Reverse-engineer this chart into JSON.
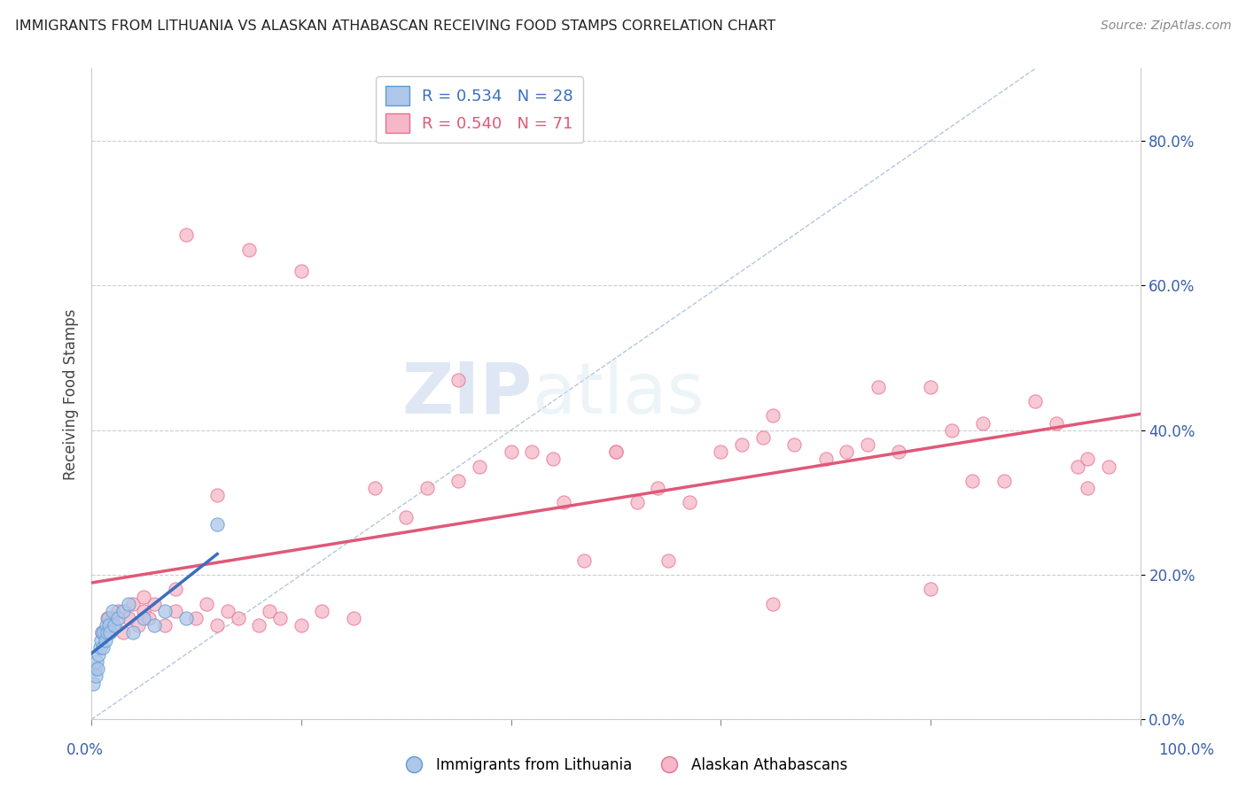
{
  "title": "IMMIGRANTS FROM LITHUANIA VS ALASKAN ATHABASCAN RECEIVING FOOD STAMPS CORRELATION CHART",
  "source": "Source: ZipAtlas.com",
  "ylabel": "Receiving Food Stamps",
  "xlim": [
    0,
    100
  ],
  "ylim": [
    0,
    90
  ],
  "ytick_values": [
    0,
    20,
    40,
    60,
    80
  ],
  "legend_r1": "R = 0.534",
  "legend_n1": "N = 28",
  "legend_r2": "R = 0.540",
  "legend_n2": "N = 71",
  "color_blue_fill": "#aec6e8",
  "color_blue_edge": "#5b9bd5",
  "color_pink_fill": "#f4b8c8",
  "color_pink_edge": "#e87090",
  "color_line_blue": "#3a6fbf",
  "color_line_pink": "#e05878",
  "color_diag": "#a0b8d8",
  "watermark_zip": "ZIP",
  "watermark_atlas": "atlas",
  "blue_x": [
    0.2,
    0.3,
    0.4,
    0.5,
    0.6,
    0.7,
    0.8,
    0.9,
    1.0,
    1.1,
    1.2,
    1.3,
    1.4,
    1.5,
    1.6,
    1.7,
    1.8,
    2.0,
    2.2,
    2.5,
    3.0,
    3.5,
    4.0,
    5.0,
    6.0,
    7.0,
    9.0,
    12.0
  ],
  "blue_y": [
    5,
    7,
    6,
    8,
    7,
    9,
    10,
    11,
    12,
    10,
    12,
    11,
    13,
    12,
    14,
    13,
    12,
    15,
    13,
    14,
    15,
    16,
    12,
    14,
    13,
    15,
    14,
    27
  ],
  "pink_x": [
    1.0,
    1.5,
    2.0,
    2.5,
    3.0,
    3.5,
    4.0,
    4.5,
    5.0,
    5.5,
    6.0,
    7.0,
    8.0,
    9.0,
    10.0,
    11.0,
    12.0,
    13.0,
    14.0,
    15.0,
    16.0,
    17.0,
    18.0,
    20.0,
    22.0,
    25.0,
    27.0,
    30.0,
    32.0,
    35.0,
    37.0,
    40.0,
    42.0,
    44.0,
    45.0,
    47.0,
    50.0,
    52.0,
    54.0,
    55.0,
    57.0,
    60.0,
    62.0,
    64.0,
    65.0,
    67.0,
    70.0,
    72.0,
    74.0,
    75.0,
    77.0,
    80.0,
    82.0,
    84.0,
    85.0,
    87.0,
    90.0,
    92.0,
    94.0,
    95.0,
    97.0,
    2.0,
    5.0,
    8.0,
    12.0,
    20.0,
    35.0,
    50.0,
    65.0,
    80.0,
    95.0
  ],
  "pink_y": [
    12,
    14,
    13,
    15,
    12,
    14,
    16,
    13,
    15,
    14,
    16,
    13,
    15,
    67,
    14,
    16,
    13,
    15,
    14,
    65,
    13,
    15,
    14,
    13,
    15,
    14,
    32,
    28,
    32,
    33,
    35,
    37,
    37,
    36,
    30,
    22,
    37,
    30,
    32,
    22,
    30,
    37,
    38,
    39,
    16,
    38,
    36,
    37,
    38,
    46,
    37,
    46,
    40,
    33,
    41,
    33,
    44,
    41,
    35,
    32,
    35,
    14,
    17,
    18,
    31,
    62,
    47,
    37,
    42,
    18,
    36
  ]
}
